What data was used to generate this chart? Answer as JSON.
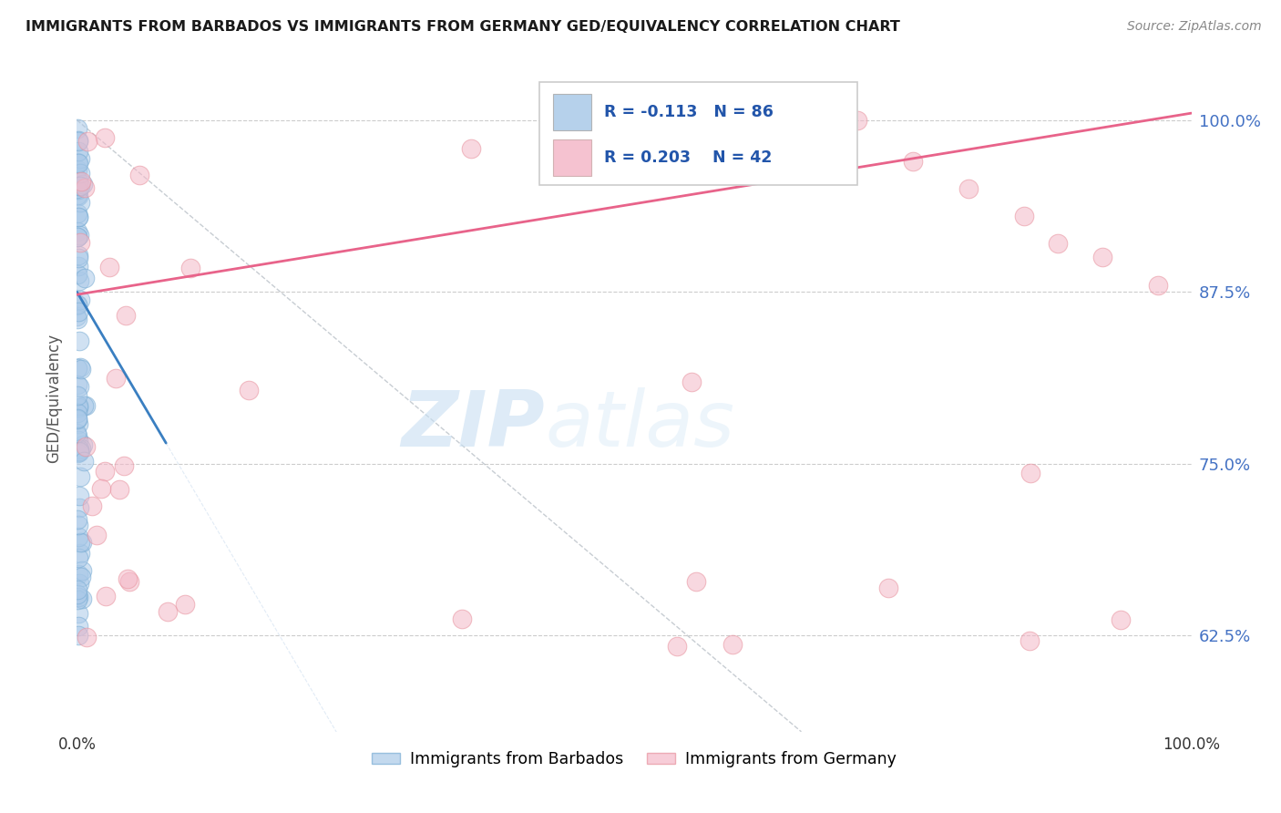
{
  "title": "IMMIGRANTS FROM BARBADOS VS IMMIGRANTS FROM GERMANY GED/EQUIVALENCY CORRELATION CHART",
  "source": "Source: ZipAtlas.com",
  "ylabel": "GED/Equivalency",
  "ytick_labels": [
    "62.5%",
    "75.0%",
    "87.5%",
    "100.0%"
  ],
  "ytick_values": [
    0.625,
    0.75,
    0.875,
    1.0
  ],
  "legend_label1": "Immigrants from Barbados",
  "legend_label2": "Immigrants from Germany",
  "R_blue": -0.113,
  "N_blue": 86,
  "R_pink": 0.203,
  "N_pink": 42,
  "blue_color": "#aac9e8",
  "pink_color": "#f4b8c8",
  "blue_line_color": "#3a7fc1",
  "pink_line_color": "#e8638a",
  "blue_edge_color": "#7aadd4",
  "pink_edge_color": "#e8939e",
  "watermark_zip": "ZIP",
  "watermark_atlas": "atlas",
  "ylim_low": 0.555,
  "ylim_high": 1.04,
  "xlim_low": 0.0,
  "xlim_high": 1.0,
  "blue_line_x0": 0.0,
  "blue_line_y0": 0.875,
  "blue_line_x1": 0.08,
  "blue_line_y1": 0.765,
  "pink_line_x0": 0.0,
  "pink_line_y0": 0.873,
  "pink_line_x1": 1.0,
  "pink_line_y1": 1.005,
  "gray_line_x0": 0.0,
  "gray_line_y0": 1.0,
  "gray_line_x1": 0.65,
  "gray_line_y1": 0.555
}
